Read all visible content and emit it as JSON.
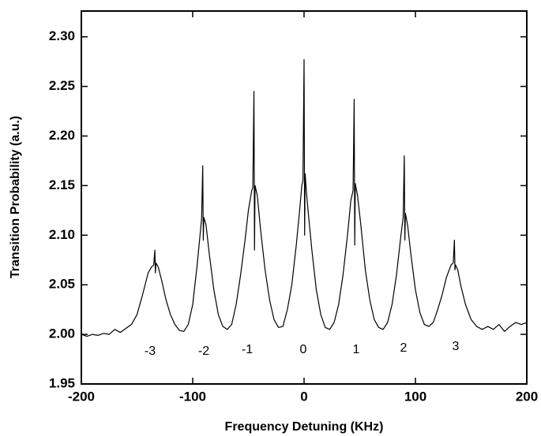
{
  "chart_data": {
    "type": "line",
    "x_label": "Frequency Detuning (KHz)",
    "y_label": "Transition Probability (a.u.)",
    "xlim": [
      -200,
      200
    ],
    "xticks": [
      -200,
      -100,
      0,
      100,
      200
    ],
    "ylim": [
      1.95,
      2.326
    ],
    "yticks": [
      1.95,
      {
        "value": 2.0,
        "label": "2.00"
      },
      2.05,
      {
        "value": 2.1,
        "label": "2.10"
      },
      2.15,
      {
        "value": 2.2,
        "label": "2.20"
      },
      2.25,
      {
        "value": 2.3,
        "label": "2.30"
      }
    ],
    "grid": false,
    "annotations": [
      "-3",
      "-2",
      "-1",
      "0",
      "1",
      "2",
      "3"
    ],
    "series": [
      {
        "color": "#000000",
        "x": [
          -200,
          -195,
          -190,
          -185,
          -180,
          -175,
          -170,
          -165,
          -160,
          -155,
          -150,
          -145,
          -140,
          -137,
          -135,
          -134,
          -133.5,
          -133,
          -131,
          -128,
          -124,
          -120,
          -116,
          -112,
          -108,
          -104,
          -100,
          -96,
          -93,
          -92,
          -91,
          -90.5,
          -90,
          -88,
          -85,
          -81,
          -77,
          -73,
          -69,
          -65,
          -61,
          -57,
          -53,
          -50,
          -47,
          -46,
          -45,
          -44.5,
          -44,
          -42,
          -39,
          -35,
          -31,
          -27,
          -23,
          -19,
          -15,
          -11,
          -7,
          -4,
          -2,
          -1,
          0,
          0.5,
          1,
          2,
          4,
          7,
          11,
          15,
          19,
          23,
          27,
          31,
          35,
          39,
          42,
          44,
          45,
          45.5,
          46,
          48,
          51,
          55,
          59,
          63,
          67,
          71,
          75,
          79,
          83,
          87,
          89,
          90,
          90.5,
          91,
          93,
          96,
          100,
          104,
          108,
          112,
          116,
          120,
          124,
          128,
          132,
          134,
          135,
          135.5,
          136,
          138,
          141,
          145,
          150,
          155,
          160,
          165,
          170,
          175,
          180,
          185,
          190,
          195,
          200
        ],
        "values": [
          2.0,
          1.998,
          2.0,
          1.999,
          2.001,
          2.0,
          2.005,
          2.002,
          2.006,
          2.01,
          2.02,
          2.04,
          2.062,
          2.068,
          2.07,
          2.085,
          2.062,
          2.072,
          2.068,
          2.055,
          2.035,
          2.02,
          2.01,
          2.004,
          2.003,
          2.01,
          2.03,
          2.07,
          2.105,
          2.117,
          2.17,
          2.095,
          2.118,
          2.11,
          2.08,
          2.045,
          2.02,
          2.008,
          2.005,
          2.01,
          2.03,
          2.06,
          2.095,
          2.125,
          2.145,
          2.148,
          2.245,
          2.085,
          2.15,
          2.14,
          2.105,
          2.065,
          2.035,
          2.015,
          2.007,
          2.008,
          2.025,
          2.05,
          2.09,
          2.125,
          2.15,
          2.155,
          2.277,
          2.1,
          2.162,
          2.145,
          2.12,
          2.085,
          2.045,
          2.02,
          2.007,
          2.005,
          2.012,
          2.03,
          2.06,
          2.1,
          2.135,
          2.145,
          2.237,
          2.09,
          2.152,
          2.14,
          2.11,
          2.065,
          2.035,
          2.015,
          2.007,
          2.005,
          2.012,
          2.03,
          2.06,
          2.1,
          2.118,
          2.18,
          2.095,
          2.122,
          2.11,
          2.08,
          2.045,
          2.022,
          2.01,
          2.008,
          2.012,
          2.025,
          2.04,
          2.058,
          2.07,
          2.072,
          2.095,
          2.065,
          2.07,
          2.065,
          2.048,
          2.03,
          2.015,
          2.008,
          2.005,
          2.008,
          2.005,
          2.01,
          2.003,
          2.008,
          2.012,
          2.01,
          2.012
        ]
      }
    ]
  }
}
